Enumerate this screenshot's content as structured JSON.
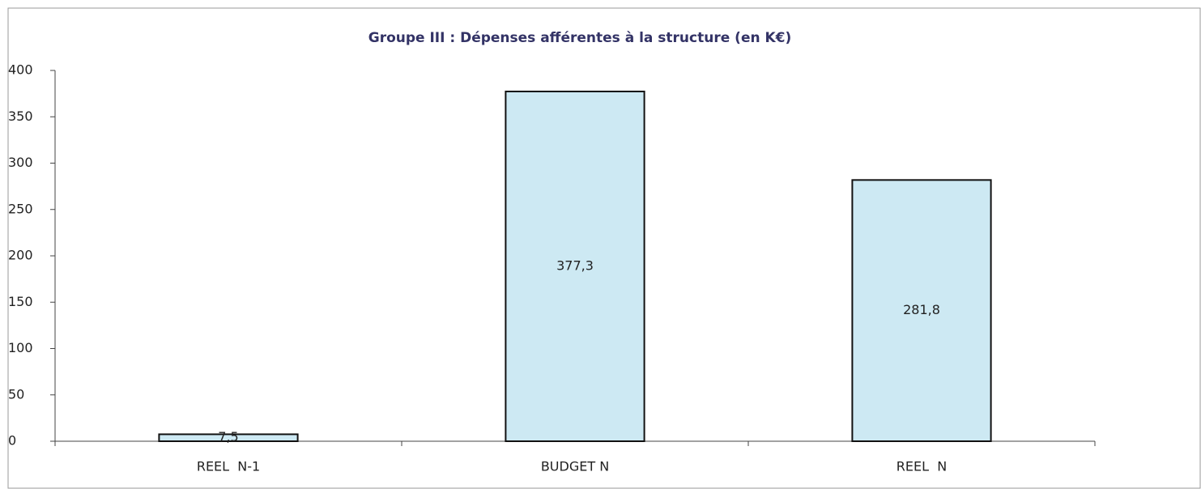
{
  "chart_data": {
    "type": "bar",
    "title": "Groupe III : Dépenses afférentes à la structure (en K€)",
    "categories": [
      "REEL  N-1",
      "BUDGET N",
      "REEL  N"
    ],
    "values": [
      7.5,
      377.3,
      281.8
    ],
    "value_labels": [
      "7,5",
      "377,3",
      "281,8"
    ],
    "color": "#cde9f3",
    "ylim": [
      0,
      400
    ],
    "yticks": [
      0,
      50,
      100,
      150,
      200,
      250,
      300,
      350,
      400
    ],
    "grid": false
  }
}
